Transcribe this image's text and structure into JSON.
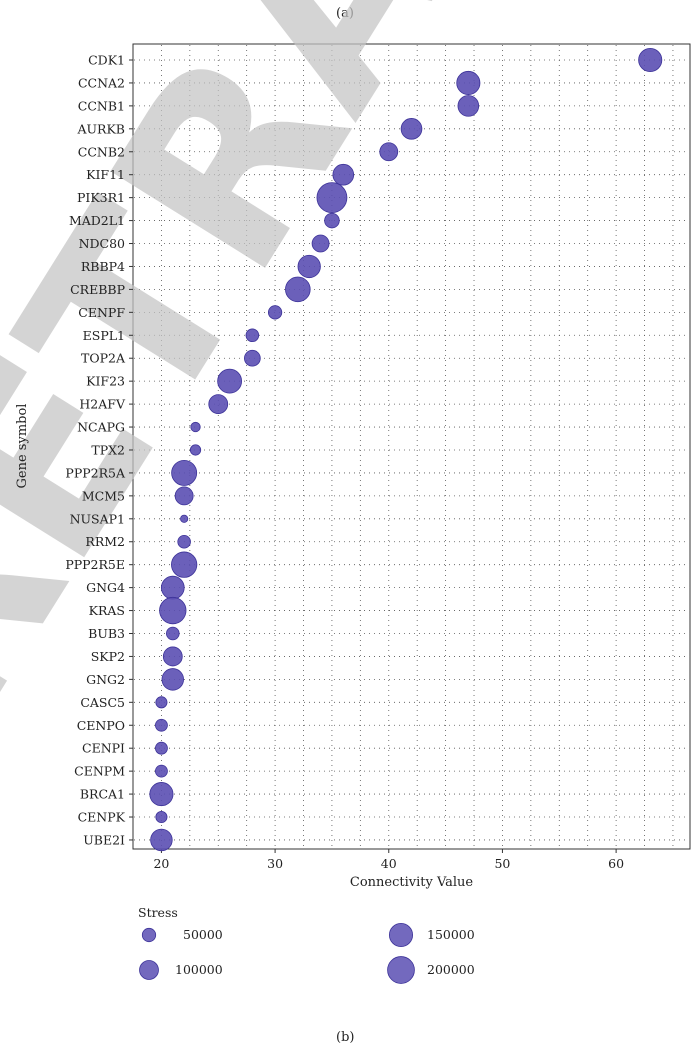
{
  "panel_top_label": "(a)",
  "panel_bottom_label": "(b)",
  "watermark_text": "RETRACTED",
  "chart_data": {
    "type": "scatter",
    "title": "",
    "xlabel": "Connectivity Value",
    "ylabel": "Gene symbol",
    "xlim": [
      17.5,
      66.5
    ],
    "xticks": [
      20,
      30,
      40,
      50,
      60
    ],
    "grid": true,
    "marker_color": "#5b4fb3",
    "legend": {
      "title": "Stress",
      "placement": "bottom",
      "entries": [
        {
          "label": "50000",
          "value": 50000
        },
        {
          "label": "150000",
          "value": 150000
        },
        {
          "label": "100000",
          "value": 100000
        },
        {
          "label": "200000",
          "value": 200000
        }
      ]
    },
    "points": [
      {
        "gene": "CDK1",
        "connectivity": 63,
        "stress": 150000
      },
      {
        "gene": "CCNA2",
        "connectivity": 47,
        "stress": 150000
      },
      {
        "gene": "CCNB1",
        "connectivity": 47,
        "stress": 120000
      },
      {
        "gene": "AURKB",
        "connectivity": 42,
        "stress": 120000
      },
      {
        "gene": "CCNB2",
        "connectivity": 40,
        "stress": 90000
      },
      {
        "gene": "KIF11",
        "connectivity": 36,
        "stress": 120000
      },
      {
        "gene": "PIK3R1",
        "connectivity": 35,
        "stress": 250000
      },
      {
        "gene": "MAD2L1",
        "connectivity": 35,
        "stress": 60000
      },
      {
        "gene": "NDC80",
        "connectivity": 34,
        "stress": 80000
      },
      {
        "gene": "RBBP4",
        "connectivity": 33,
        "stress": 140000
      },
      {
        "gene": "CREBBP",
        "connectivity": 32,
        "stress": 170000
      },
      {
        "gene": "CENPF",
        "connectivity": 30,
        "stress": 50000
      },
      {
        "gene": "ESPL1",
        "connectivity": 28,
        "stress": 45000
      },
      {
        "gene": "TOP2A",
        "connectivity": 28,
        "stress": 70000
      },
      {
        "gene": "KIF23",
        "connectivity": 26,
        "stress": 160000
      },
      {
        "gene": "H2AFV",
        "connectivity": 25,
        "stress": 100000
      },
      {
        "gene": "NCAPG",
        "connectivity": 23,
        "stress": 25000
      },
      {
        "gene": "TPX2",
        "connectivity": 23,
        "stress": 30000
      },
      {
        "gene": "PPP2R5A",
        "connectivity": 22,
        "stress": 175000
      },
      {
        "gene": "MCM5",
        "connectivity": 22,
        "stress": 90000
      },
      {
        "gene": "NUSAP1",
        "connectivity": 22,
        "stress": 15000
      },
      {
        "gene": "RRM2",
        "connectivity": 22,
        "stress": 45000
      },
      {
        "gene": "PPP2R5E",
        "connectivity": 22,
        "stress": 180000
      },
      {
        "gene": "GNG4",
        "connectivity": 21,
        "stress": 145000
      },
      {
        "gene": "KRAS",
        "connectivity": 21,
        "stress": 195000
      },
      {
        "gene": "BUB3",
        "connectivity": 21,
        "stress": 45000
      },
      {
        "gene": "SKP2",
        "connectivity": 21,
        "stress": 100000
      },
      {
        "gene": "GNG2",
        "connectivity": 21,
        "stress": 130000
      },
      {
        "gene": "CASC5",
        "connectivity": 20,
        "stress": 35000
      },
      {
        "gene": "CENPO",
        "connectivity": 20,
        "stress": 40000
      },
      {
        "gene": "CENPI",
        "connectivity": 20,
        "stress": 40000
      },
      {
        "gene": "CENPM",
        "connectivity": 20,
        "stress": 40000
      },
      {
        "gene": "BRCA1",
        "connectivity": 20,
        "stress": 150000
      },
      {
        "gene": "CENPK",
        "connectivity": 20,
        "stress": 35000
      },
      {
        "gene": "UBE2I",
        "connectivity": 20,
        "stress": 130000
      }
    ]
  }
}
